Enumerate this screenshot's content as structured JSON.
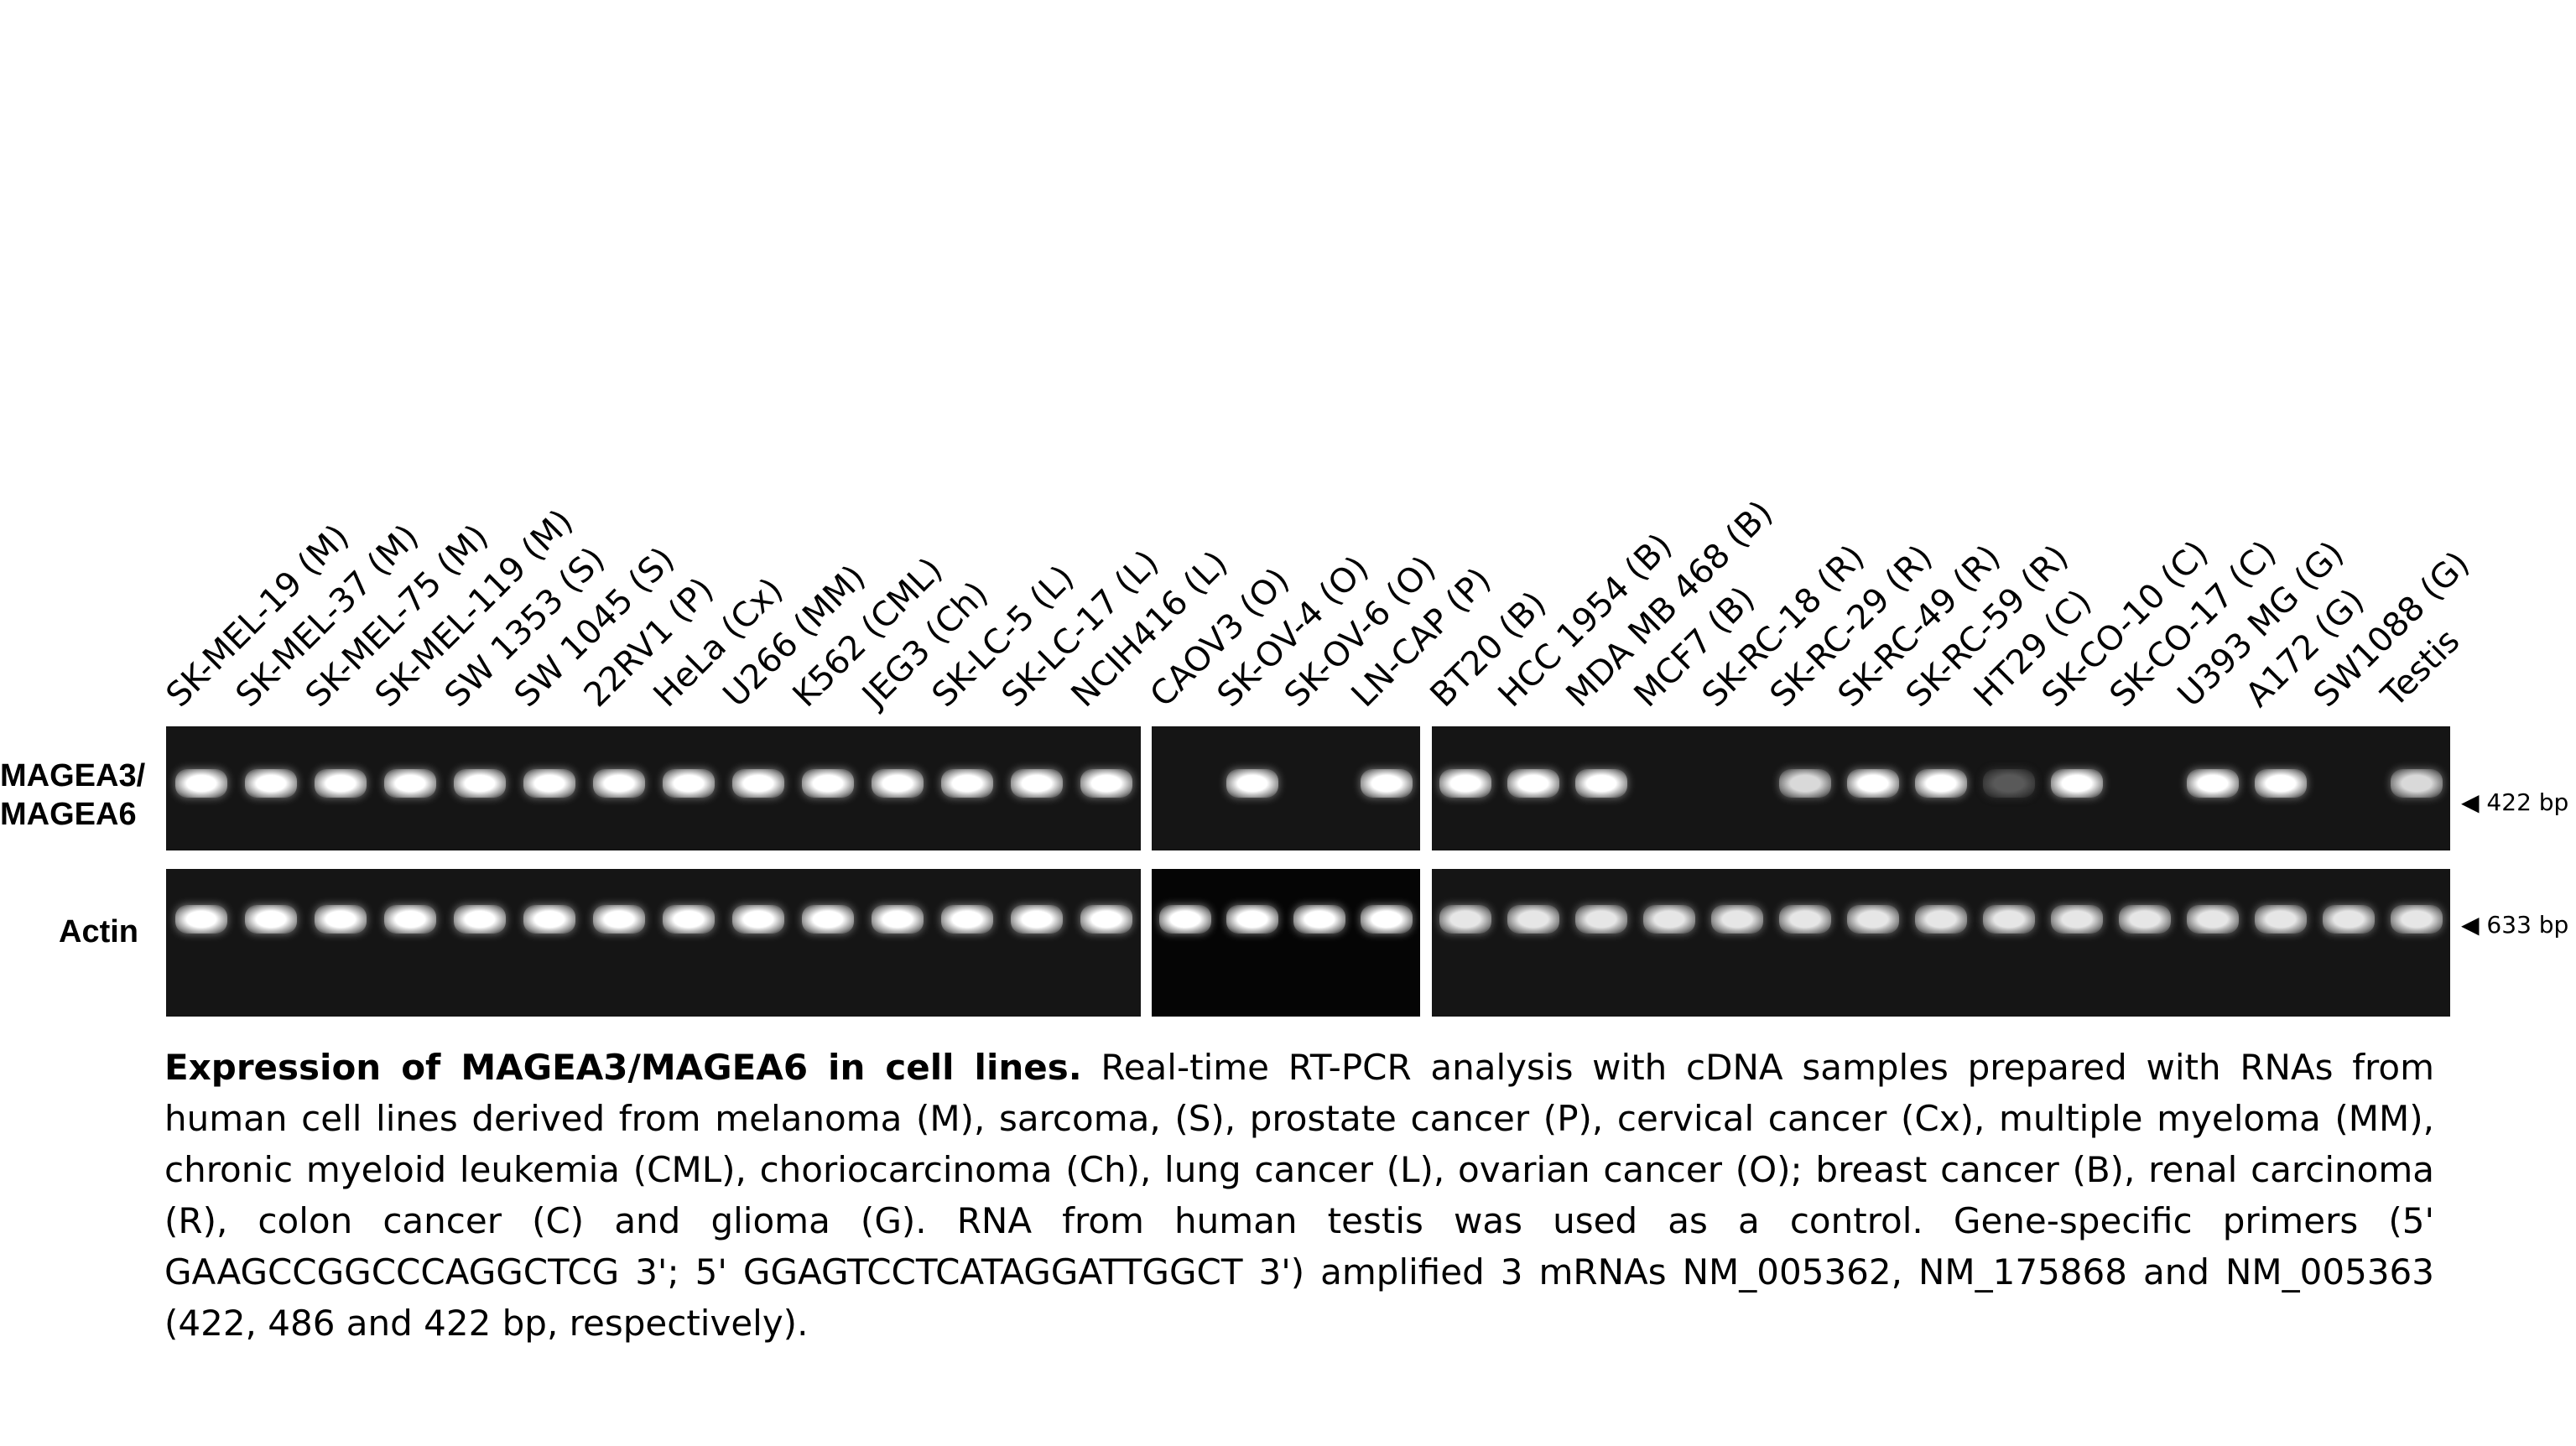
{
  "gel": {
    "lanes": [
      "SK-MEL-19 (M)",
      "SK-MEL-37 (M)",
      "SK-MEL-75 (M)",
      "SK-MEL-119 (M)",
      "SW 1353 (S)",
      "SW 1045 (S)",
      "22RV1 (P)",
      "HeLa (Cx)",
      "U266 (MM)",
      "K562 (CML)",
      "JEG3 (Ch)",
      "SK-LC-5 (L)",
      "SK-LC-17 (L)",
      "NCIH416 (L)",
      "CAOV3 (O)",
      "SK-OV-4 (O)",
      "SK-OV-6 (O)",
      "LN-CAP (P)",
      "BT20 (B)",
      "HCC 1954 (B)",
      "MDA MB 468 (B)",
      "MCF7 (B)",
      "SK-RC-18 (R)",
      "SK-RC-29 (R)",
      "SK-RC-49 (R)",
      "SK-RC-59 (R)",
      "HT29 (C)",
      "SK-CO-10 (C)",
      "SK-CO-17 (C)",
      "U393 MG (G)",
      "A172 (G)",
      "SW1088 (G)",
      "Testis"
    ],
    "rows": [
      {
        "label_lines": [
          "MAGEA3/",
          "MAGEA6"
        ],
        "size_label": "◀ 422 bp",
        "band_intensity": [
          1,
          1,
          1,
          1,
          1,
          1,
          1,
          1,
          1,
          1,
          1,
          1,
          1,
          1,
          0,
          1,
          0,
          1,
          1,
          1,
          1,
          0,
          0,
          0.85,
          1,
          1,
          0.35,
          1,
          0,
          1,
          1,
          0,
          0.85
        ]
      },
      {
        "label_lines": [
          "Actin"
        ],
        "size_label": "◀ 633 bp",
        "band_intensity": [
          1,
          1,
          1,
          1,
          1,
          1,
          1,
          1,
          1,
          1,
          1,
          1,
          1,
          1,
          1,
          1,
          1,
          1,
          0.9,
          0.9,
          0.9,
          0.9,
          0.9,
          0.9,
          0.9,
          0.9,
          0.9,
          0.9,
          0.9,
          0.9,
          0.9,
          0.9,
          0.9
        ]
      }
    ]
  },
  "caption": {
    "title": "Expression of MAGEA3/MAGEA6 in cell lines.",
    "body": " Real-time RT-PCR  analysis with cDNA samples prepared with RNAs from human cell lines derived from melanoma (M), sarcoma, (S), prostate cancer (P),  cervical cancer (Cx), multiple myeloma (MM), chronic myeloid leukemia (CML), choriocarcinoma (Ch), lung cancer (L), ovarian cancer (O); breast cancer (B), renal carcinoma (R), colon cancer (C) and glioma (G). RNA from human testis was used as a control. Gene-specific primers (5' GAAGCCGGCCCAGGCTCG 3'; 5' GGAGTCCTCATAGGATTGGCT 3') amplified 3 mRNAs NM_005362, NM_175868 and NM_005363 (422, 486 and 422 bp, respectively)."
  }
}
